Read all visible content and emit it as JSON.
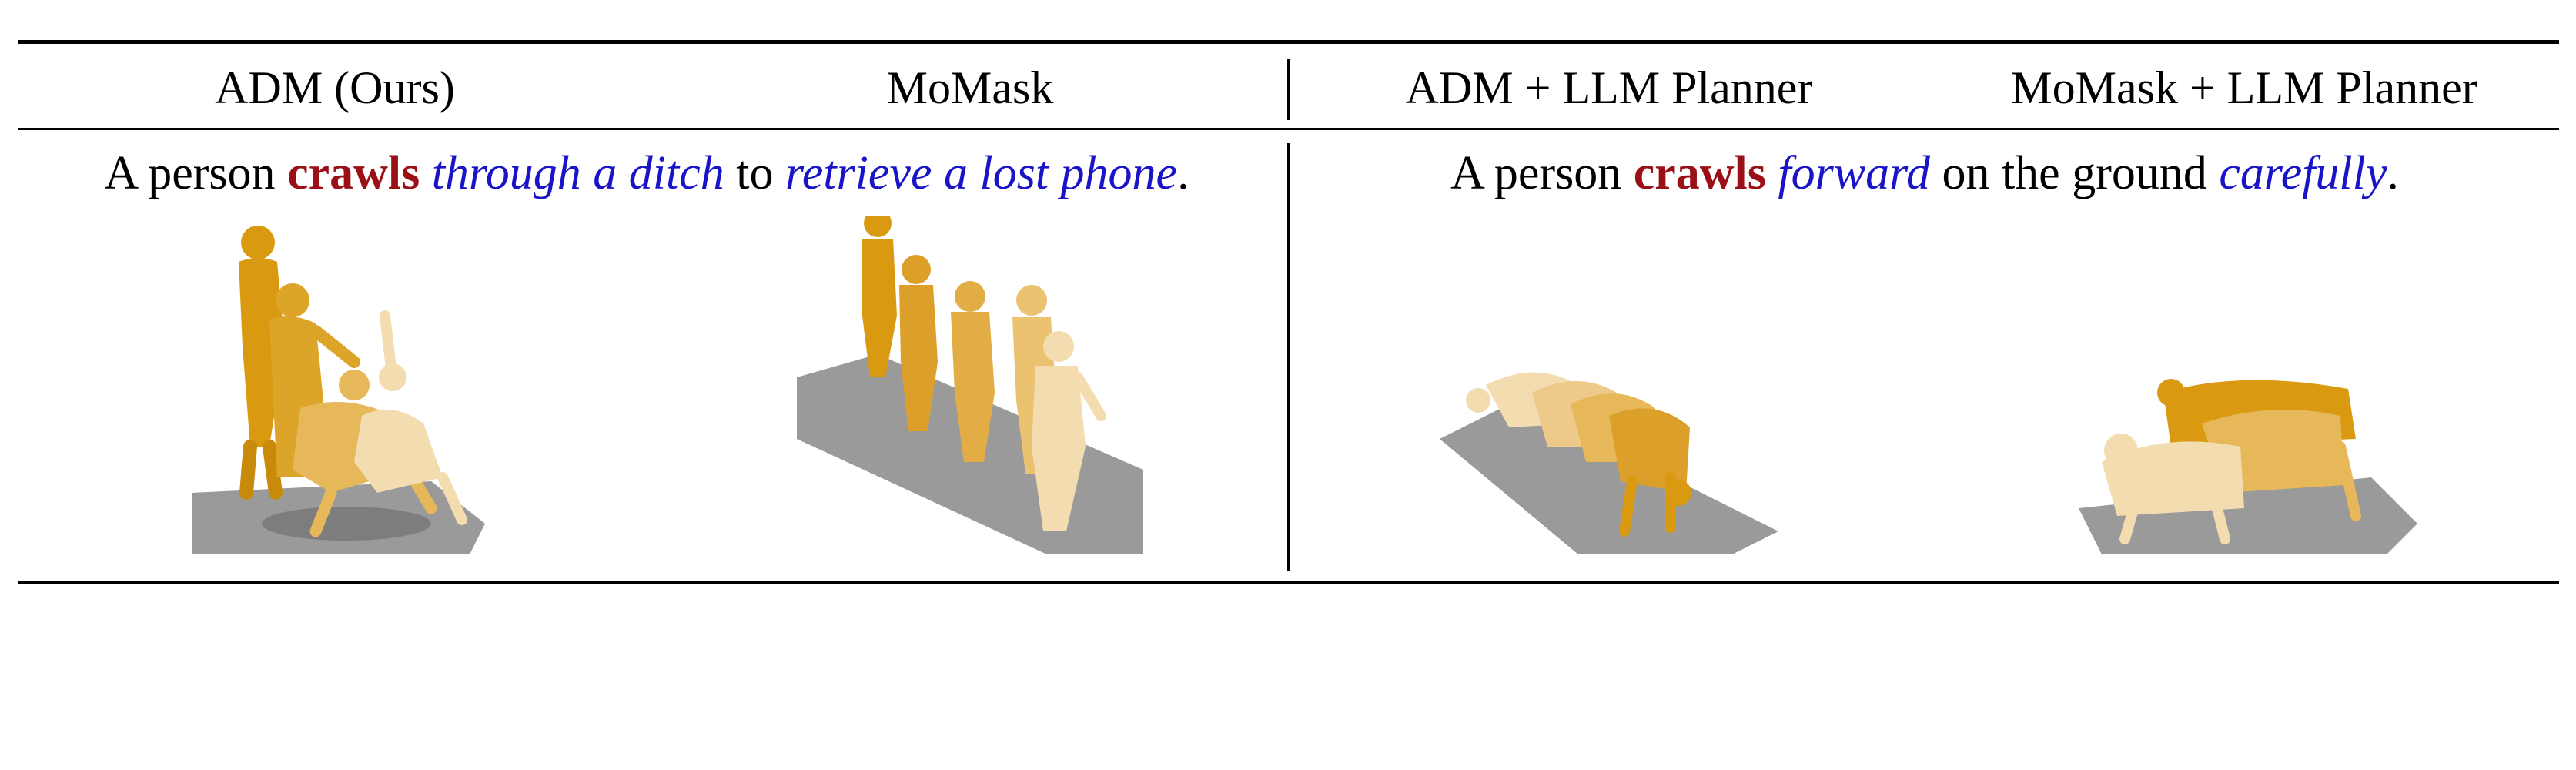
{
  "headers": [
    "ADM (Ours)",
    "MoMask",
    "ADM + LLM Planner",
    "MoMask + LLM Planner"
  ],
  "captions": {
    "left": {
      "t1": "A person ",
      "verb": "crawls",
      "t2": " ",
      "m1": "through a ditch",
      "t3": " to ",
      "m2": "retrieve a lost phone",
      "t4": "."
    },
    "right": {
      "t1": "A person ",
      "verb": "crawls",
      "t2": " ",
      "m1": "forward",
      "t3": " on the ground ",
      "m2": "carefully",
      "t4": "."
    }
  },
  "colors": {
    "verb": "#9b0f17",
    "modifier": "#1a14c8",
    "figure_dark": "#d99a12",
    "figure_light": "#f3dcb0",
    "ground": "#9a9a9a"
  }
}
